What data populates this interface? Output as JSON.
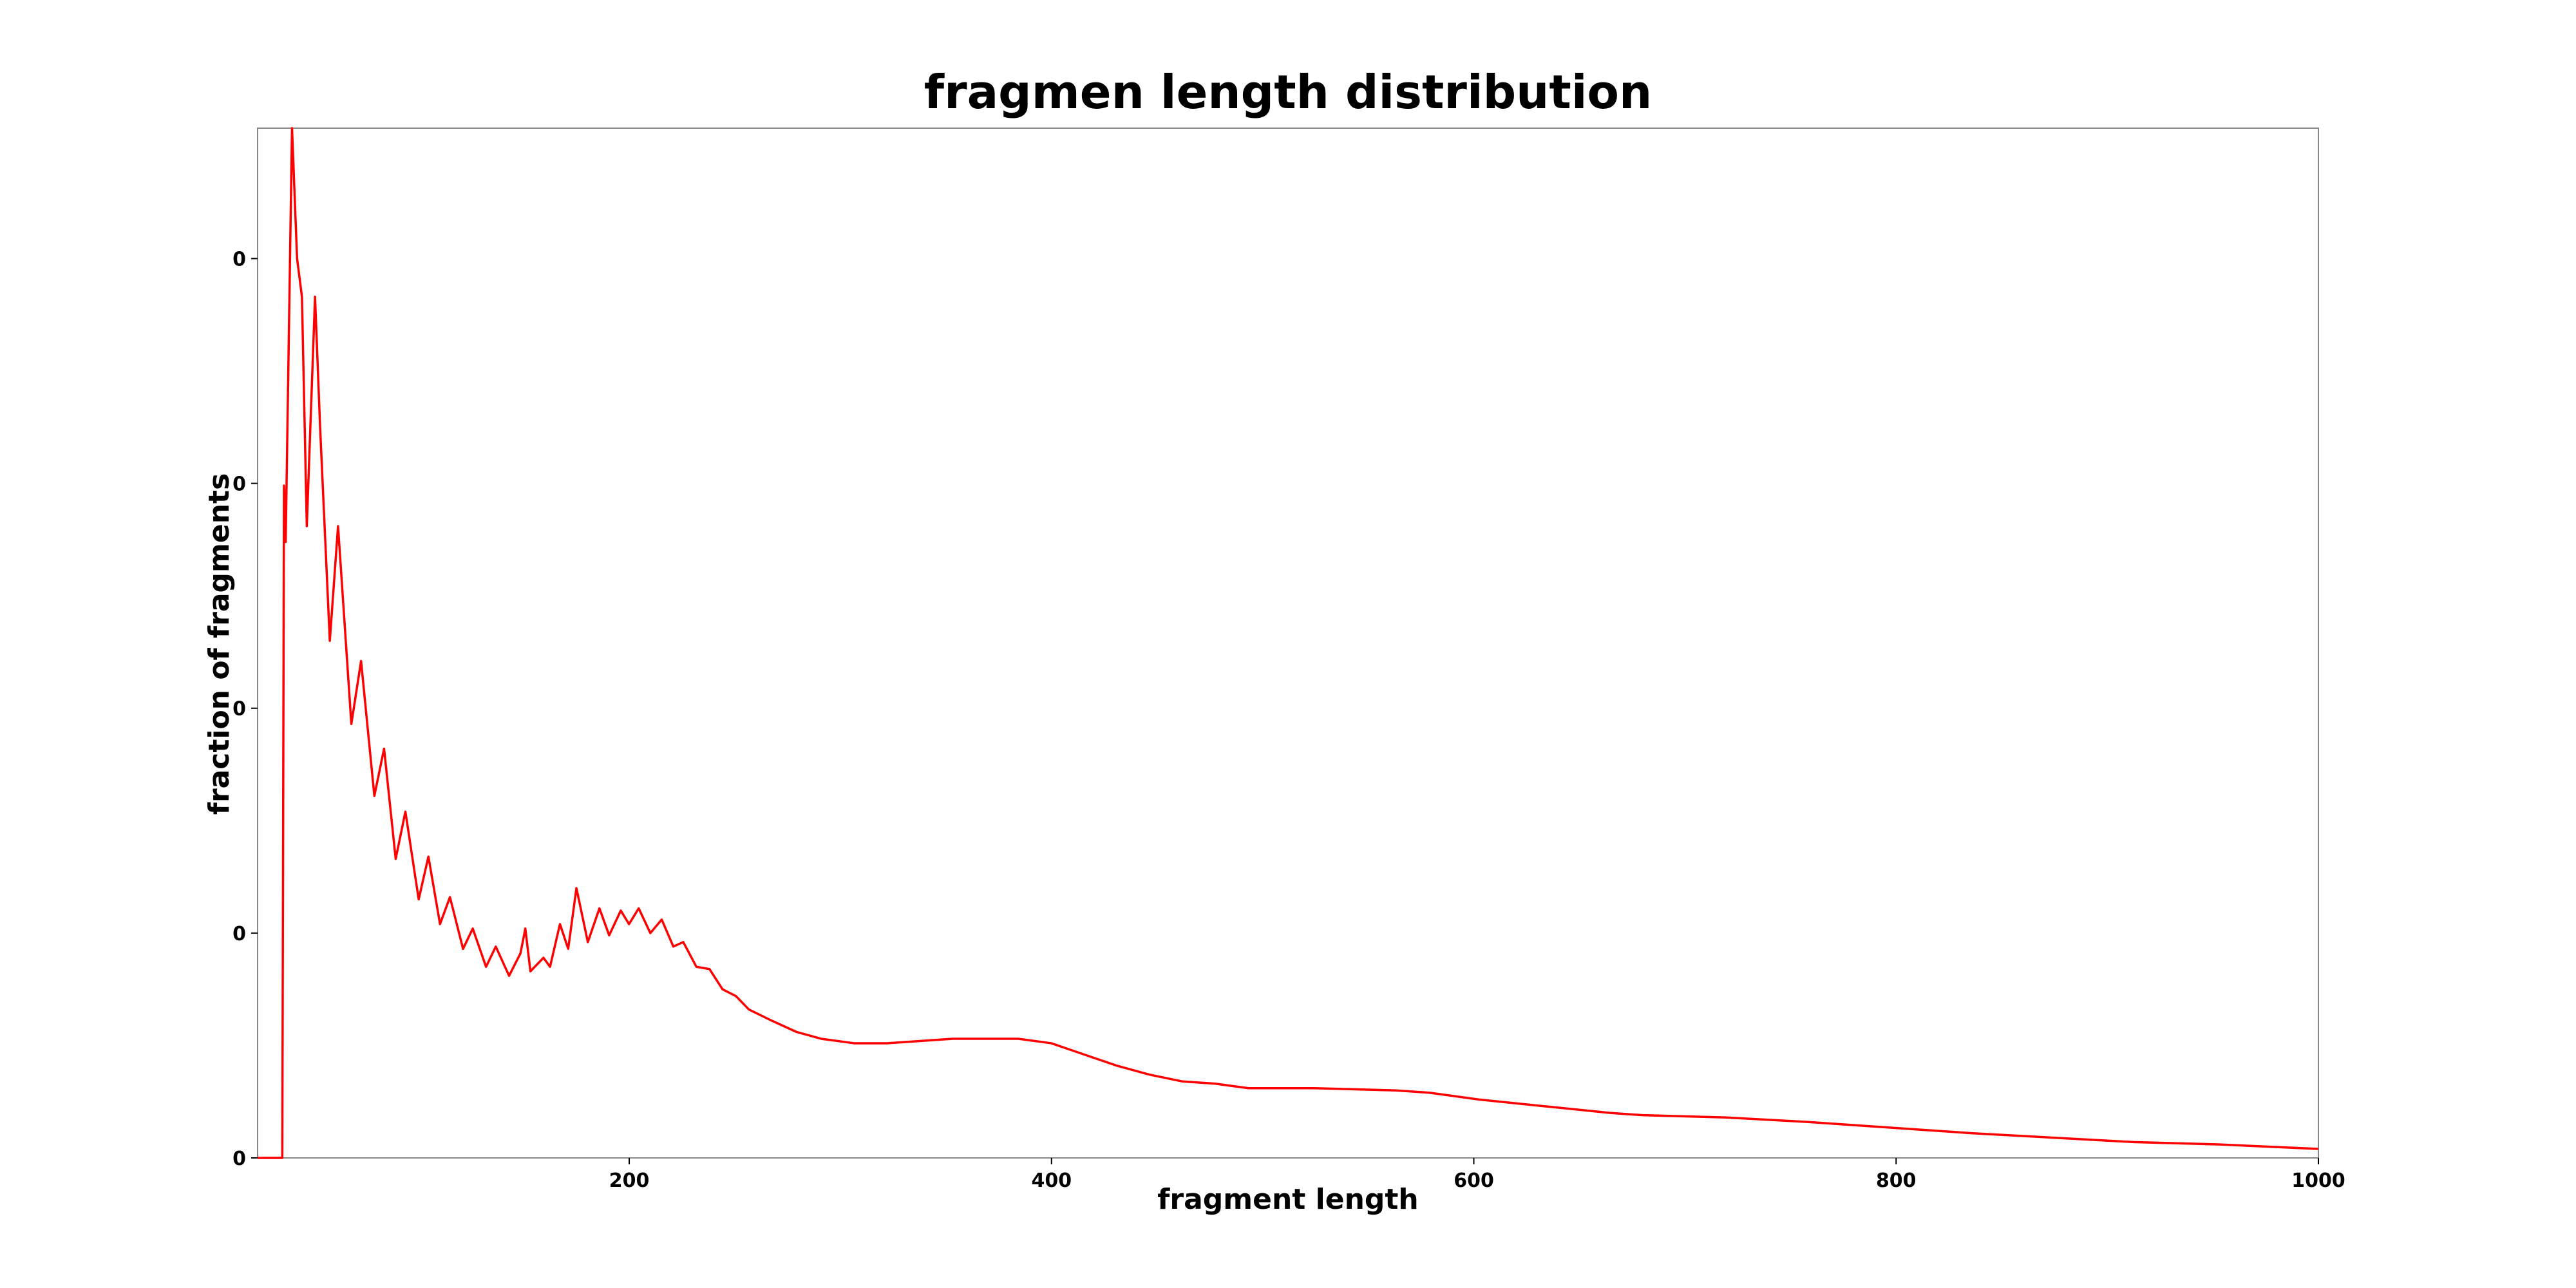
{
  "chart_data": {
    "type": "line",
    "title": "fragmen length distribution",
    "x_label": "fragment length",
    "y_label": "fraction of fragments",
    "color": "#ff0000",
    "xlim": [
      24,
      1000
    ],
    "ylim": [
      0,
      0.00458
    ],
    "xticks": [
      200,
      400,
      600,
      800,
      1000
    ],
    "yticks": [
      {
        "value": 0,
        "label": "0"
      },
      {
        "value": 0.001,
        "label": "0"
      },
      {
        "value": 0.002,
        "label": "0"
      },
      {
        "value": 0.003,
        "label": "0"
      },
      {
        "value": 0.004,
        "label": "0"
      }
    ],
    "x": [
      24,
      35.7,
      36.5,
      37.3,
      40.3,
      42.7,
      45.0,
      47.3,
      51.2,
      53.6,
      58.2,
      62.1,
      68.4,
      73.0,
      79.3,
      83.9,
      89.4,
      94.0,
      100.3,
      104.9,
      110.4,
      115.1,
      121.3,
      125.9,
      132.2,
      136.8,
      143.1,
      148.5,
      150.8,
      153.2,
      159.4,
      162.5,
      167.2,
      171.1,
      175.0,
      180.4,
      185.9,
      190.5,
      196.0,
      199.9,
      204.5,
      210.0,
      215.4,
      220.9,
      225.6,
      231.8,
      238.0,
      244.2,
      250.5,
      256.7,
      267.6,
      279.3,
      290.9,
      306.5,
      322.1,
      337.6,
      353.2,
      368.7,
      384.3,
      399.9,
      415.4,
      431.0,
      446.6,
      462.1,
      477.7,
      493.3,
      524.4,
      563.3,
      578.9,
      602.2,
      633.3,
      664.5,
      680.0,
      718.9,
      757.9,
      789.0,
      835.7,
      874.6,
      913.5,
      952.4,
      1000
    ],
    "values": [
      0,
      0,
      0.00299,
      0.00274,
      0.00458,
      0.004,
      0.00383,
      0.00281,
      0.00383,
      0.00325,
      0.0023,
      0.00281,
      0.00193,
      0.00221,
      0.00161,
      0.00182,
      0.00133,
      0.00154,
      0.00115,
      0.00134,
      0.00104,
      0.00116,
      0.00093,
      0.00102,
      0.00085,
      0.00094,
      0.00081,
      0.00091,
      0.00102,
      0.00083,
      0.00089,
      0.00085,
      0.00104,
      0.00093,
      0.0012,
      0.00096,
      0.00111,
      0.00099,
      0.0011,
      0.00104,
      0.00111,
      0.001,
      0.00106,
      0.00094,
      0.00096,
      0.00085,
      0.00084,
      0.00075,
      0.00072,
      0.00066,
      0.00061,
      0.00056,
      0.00053,
      0.00051,
      0.00051,
      0.00052,
      0.00053,
      0.00053,
      0.00053,
      0.00051,
      0.00046,
      0.00041,
      0.00037,
      0.00034,
      0.00033,
      0.00031,
      0.00031,
      0.0003,
      0.00029,
      0.00026,
      0.00023,
      0.0002,
      0.00019,
      0.00018,
      0.00016,
      0.00014,
      0.00011,
      9e-05,
      7e-05,
      6e-05,
      4e-05
    ]
  }
}
